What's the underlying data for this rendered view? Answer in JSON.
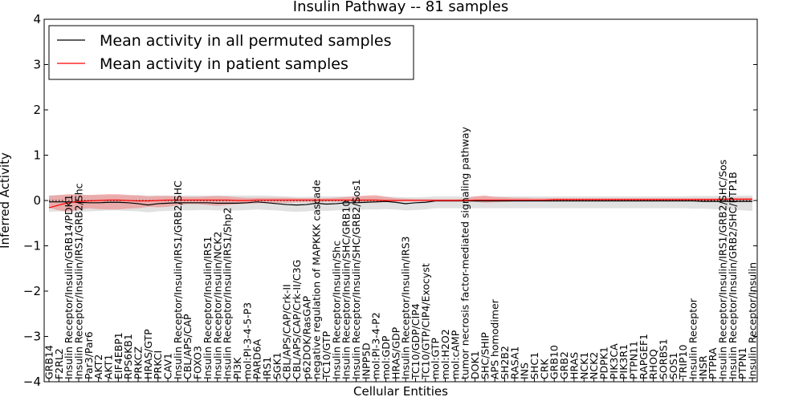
{
  "chart_data": {
    "type": "line",
    "title": "Insulin Pathway -- 81 samples",
    "xlabel": "Cellular Entities",
    "ylabel": "Inferred Activity",
    "ylim": [
      -4,
      4
    ],
    "yticks": [
      "−4",
      "−3",
      "−2",
      "−1",
      "0",
      "1",
      "2",
      "3",
      "4"
    ],
    "legend": {
      "position": "top-left",
      "entries": [
        {
          "label": "Mean activity in all permuted samples",
          "color": "#000000"
        },
        {
          "label": "Mean activity in patient samples",
          "color": "#ff0000"
        }
      ]
    },
    "categories": [
      "GRB14",
      "F2RL2",
      "Insulin Receptor/Insulin/GRB14/PDK1",
      "Insulin Receptor/Insulin/IRS1/GRB2/Shc",
      "Par3/Par6",
      "AKT2",
      "AKT1",
      "EIF4EBP1",
      "RPS6KB1",
      "PRKCZ",
      "HRAS/GTP",
      "PRKCI",
      "CAV1",
      "Insulin Receptor/Insulin/IRS1/GRB2/SHC",
      "CBL/APS/CAP",
      "FOXO3",
      "Insulin Receptor/Insulin/IRS1",
      "Insulin Receptor/Insulin/NCK2",
      "Insulin Receptor/Insulin/IRS1/Shp2",
      "PI3K",
      "mol:PI-3-4-5-P3",
      "PARD6A",
      "IRS1",
      "SGK1",
      "CBL/APS/CAP/Crk-II",
      "CBL/APS/CAP/Crk-II/C3G",
      "p62DOK/RasGAP",
      "negative regulation of MAPKKK cascade",
      "TC10/GTP",
      "Insulin Receptor/Insulin/Shc",
      "Insulin Receptor/Insulin/SHC/GRB10",
      "Insulin Receptor/Insulin/SHC/GRB2/Sos1",
      "INPP5D",
      "mol:PI-3-4-P2",
      "mol:GDP",
      "HRAS/GDP",
      "Insulin Receptor/Insulin/IRS3",
      "TC10/GDP/CIP4",
      "TC10/GTP/CIP4/Exocyst",
      "mol:GTP",
      "mol:H2O2",
      "mol:cAMP",
      "tumor necrosis factor-mediated signaling pathway",
      "DOK1",
      "SHC/SHIP",
      "APS homodimer",
      "SH2B2",
      "RASA1",
      "INS",
      "SHC1",
      "CRK",
      "GRB10",
      "GRB2",
      "HRAS",
      "NCK1",
      "NCK2",
      "PDPK1",
      "PIK3CA",
      "PIK3R1",
      "PTPN11",
      "RAPGEF1",
      "RHOQ",
      "SORBS1",
      "SOS1",
      "TRIP10",
      "Insulin Receptor",
      "INSR",
      "PTPRA",
      "Insulin Receptor/Insulin/IRS1/GRB2/SHC/Sos",
      "Insulin Receptor/Insulin/GRB2/SHC/PTP1B",
      "PTPN1",
      "Insulin Receptor/Insulin"
    ],
    "series": [
      {
        "name": "Mean activity in all permuted samples",
        "color": "#000000",
        "values": [
          -0.03,
          -0.03,
          -0.03,
          -0.04,
          -0.05,
          -0.05,
          -0.04,
          -0.04,
          -0.05,
          -0.07,
          -0.1,
          -0.07,
          -0.06,
          -0.05,
          -0.05,
          -0.05,
          -0.05,
          -0.06,
          -0.06,
          -0.06,
          -0.05,
          -0.03,
          -0.05,
          -0.07,
          -0.09,
          -0.1,
          -0.09,
          -0.06,
          -0.08,
          -0.07,
          -0.05,
          -0.05,
          -0.04,
          -0.03,
          -0.02,
          -0.04,
          -0.07,
          -0.05,
          -0.04,
          -0.01,
          -0.01,
          -0.01,
          -0.01,
          -0.01,
          -0.01,
          -0.01,
          -0.01,
          -0.01,
          -0.01,
          -0.01,
          -0.01,
          -0.01,
          -0.01,
          -0.01,
          -0.01,
          -0.01,
          -0.01,
          -0.01,
          -0.01,
          -0.01,
          -0.01,
          -0.01,
          -0.01,
          -0.01,
          -0.01,
          -0.01,
          -0.02,
          -0.02,
          -0.02,
          -0.02,
          -0.02,
          -0.02
        ],
        "band_lower": [
          -0.25,
          -0.24,
          -0.24,
          -0.25,
          -0.24,
          -0.23,
          -0.22,
          -0.22,
          -0.23,
          -0.24,
          -0.26,
          -0.24,
          -0.23,
          -0.22,
          -0.22,
          -0.21,
          -0.21,
          -0.22,
          -0.22,
          -0.22,
          -0.21,
          -0.2,
          -0.21,
          -0.22,
          -0.24,
          -0.25,
          -0.24,
          -0.22,
          -0.23,
          -0.22,
          -0.21,
          -0.21,
          -0.2,
          -0.2,
          -0.19,
          -0.2,
          -0.22,
          -0.21,
          -0.2,
          -0.17,
          -0.17,
          -0.17,
          -0.17,
          -0.17,
          -0.17,
          -0.17,
          -0.17,
          -0.17,
          -0.17,
          -0.17,
          -0.17,
          -0.17,
          -0.17,
          -0.17,
          -0.17,
          -0.17,
          -0.17,
          -0.17,
          -0.17,
          -0.17,
          -0.17,
          -0.17,
          -0.17,
          -0.17,
          -0.17,
          -0.18,
          -0.18,
          -0.19,
          -0.2,
          -0.21,
          -0.22,
          -0.23
        ],
        "band_upper": [
          0.12,
          0.12,
          0.12,
          0.13,
          0.12,
          0.12,
          0.12,
          0.12,
          0.12,
          0.12,
          0.11,
          0.11,
          0.11,
          0.11,
          0.11,
          0.11,
          0.11,
          0.11,
          0.11,
          0.11,
          0.11,
          0.11,
          0.11,
          0.1,
          0.09,
          0.08,
          0.08,
          0.09,
          0.09,
          0.09,
          0.09,
          0.09,
          0.09,
          0.09,
          0.09,
          0.08,
          0.07,
          0.07,
          0.08,
          0.09,
          0.09,
          0.09,
          0.09,
          0.09,
          0.09,
          0.09,
          0.09,
          0.09,
          0.09,
          0.09,
          0.09,
          0.09,
          0.09,
          0.09,
          0.09,
          0.09,
          0.09,
          0.09,
          0.09,
          0.09,
          0.09,
          0.09,
          0.09,
          0.09,
          0.09,
          0.1,
          0.1,
          0.1,
          0.1,
          0.11,
          0.11,
          0.11
        ]
      },
      {
        "name": "Mean activity in patient samples",
        "color": "#ff0000",
        "values": [
          -0.16,
          -0.1,
          -0.05,
          -0.02,
          -0.01,
          0,
          0.01,
          0.01,
          0.0,
          -0.01,
          -0.01,
          0.0,
          0.01,
          0.01,
          0.01,
          0.01,
          0.01,
          0.01,
          0.01,
          0.0,
          0.0,
          0.01,
          0.01,
          0.01,
          0.01,
          0.01,
          0.01,
          0.01,
          0.01,
          0.01,
          0.01,
          0.01,
          0.01,
          0.01,
          0.0,
          0.0,
          0.0,
          0.0,
          0.0,
          0.0,
          0.0,
          0.0,
          0.0,
          0.01,
          0.01,
          0.01,
          0.01,
          0.01,
          0.01,
          0.01,
          0.01,
          0.02,
          0.02,
          0.02,
          0.02,
          0.02,
          0.02,
          0.02,
          0.02,
          0.02,
          0.02,
          0.02,
          0.02,
          0.02,
          0.02,
          0.02,
          0.02,
          0.02,
          0.03,
          0.03,
          0.03,
          0.03
        ],
        "band_lower": [
          -0.16,
          -0.22,
          -0.25,
          -0.2,
          -0.17,
          -0.19,
          -0.2,
          -0.2,
          -0.18,
          -0.17,
          -0.14,
          -0.15,
          -0.14,
          -0.1,
          -0.08,
          -0.08,
          -0.1,
          -0.12,
          -0.1,
          -0.08,
          -0.07,
          -0.06,
          -0.05,
          -0.05,
          -0.05,
          -0.04,
          -0.04,
          -0.04,
          -0.03,
          -0.03,
          -0.03,
          -0.03,
          -0.04,
          -0.05,
          -0.03,
          -0.02,
          -0.01,
          -0.01,
          -0.01,
          -0.01,
          -0.01,
          -0.01,
          -0.01,
          -0.03,
          -0.05,
          -0.04,
          -0.03,
          -0.02,
          -0.02,
          -0.01,
          -0.01,
          -0.01,
          -0.01,
          -0.01,
          -0.01,
          -0.01,
          -0.01,
          -0.01,
          -0.01,
          -0.01,
          -0.01,
          -0.01,
          -0.01,
          -0.01,
          -0.01,
          -0.01,
          -0.01,
          -0.01,
          -0.01,
          -0.01,
          -0.01,
          -0.01
        ],
        "band_upper": [
          0.1,
          0.12,
          0.14,
          0.13,
          0.12,
          0.13,
          0.14,
          0.14,
          0.12,
          0.11,
          0.09,
          0.1,
          0.1,
          0.09,
          0.08,
          0.08,
          0.09,
          0.1,
          0.09,
          0.07,
          0.06,
          0.06,
          0.06,
          0.06,
          0.06,
          0.05,
          0.05,
          0.05,
          0.05,
          0.06,
          0.08,
          0.09,
          0.11,
          0.12,
          0.08,
          0.05,
          0.04,
          0.03,
          0.03,
          0.03,
          0.03,
          0.03,
          0.04,
          0.09,
          0.11,
          0.08,
          0.07,
          0.06,
          0.06,
          0.05,
          0.05,
          0.05,
          0.05,
          0.05,
          0.05,
          0.05,
          0.05,
          0.05,
          0.05,
          0.05,
          0.05,
          0.05,
          0.05,
          0.05,
          0.05,
          0.05,
          0.05,
          0.05,
          0.05,
          0.06,
          0.06,
          0.06
        ]
      }
    ]
  }
}
